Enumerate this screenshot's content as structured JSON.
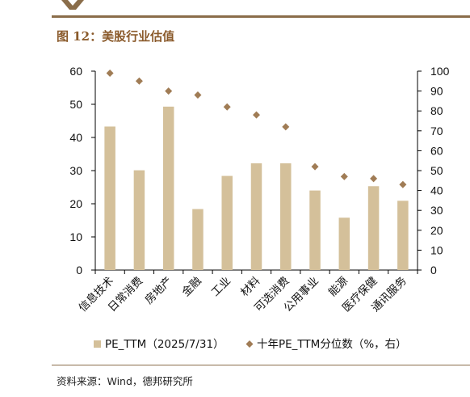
{
  "header": {
    "figure_title": "图 12：美股行业估值"
  },
  "footer": {
    "source": "资料来源：Wind，德邦研究所"
  },
  "colors": {
    "bar": "#d4c09a",
    "marker": "#a07c55",
    "rule": "#8a6d4a",
    "title": "#8a5a2b"
  },
  "chart_data": {
    "type": "bar",
    "categories": [
      "信息技术",
      "日常消费",
      "房地产",
      "金融",
      "工业",
      "材料",
      "可选消费",
      "公用事业",
      "能源",
      "医疗保健",
      "通讯服务"
    ],
    "series": [
      {
        "name": "PE_TTM（2025/7/31）",
        "type": "bar",
        "axis": "left",
        "values": [
          43.3,
          30.1,
          49.3,
          18.4,
          28.4,
          32.2,
          32.2,
          24.0,
          15.8,
          25.3,
          20.9
        ]
      },
      {
        "name": "十年PE_TTM分位数（%，右）",
        "type": "scatter",
        "marker": "diamond",
        "axis": "right",
        "values": [
          99,
          95,
          90,
          88,
          82,
          78,
          72,
          52,
          47,
          46,
          43
        ]
      }
    ],
    "y_left": {
      "range": [
        0,
        60
      ],
      "ticks": [
        "0",
        "10",
        "20",
        "30",
        "40",
        "50",
        "60"
      ]
    },
    "y_right": {
      "range": [
        0,
        100
      ],
      "ticks": [
        "0",
        "10",
        "20",
        "30",
        "40",
        "50",
        "60",
        "70",
        "80",
        "90",
        "100"
      ]
    },
    "grid": false,
    "legend_position": "bottom"
  }
}
